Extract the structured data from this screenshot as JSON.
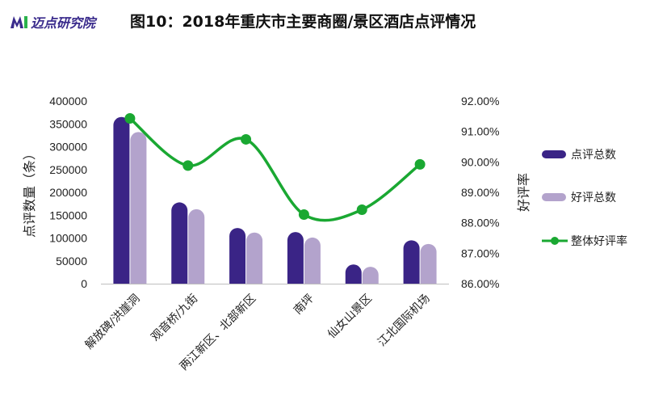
{
  "header": {
    "logo_text": "迈点研究院",
    "title": "图10：2018年重庆市主要商圈/景区酒店点评情况"
  },
  "colors": {
    "total_reviews": "#3a2486",
    "good_reviews": "#b3a3cc",
    "good_rate": "#1aa832",
    "logo": "#3a2b8c",
    "logo_accent": "#2bb24c"
  },
  "icons": {
    "logo": "maidian-logo-icon"
  },
  "chart_data": {
    "type": "bar",
    "title": "图10：2018年重庆市主要商圈/景区酒店点评情况",
    "categories": [
      "解放碑/洪崖洞",
      "观音桥/九街",
      "两江新区、北部新区",
      "南坪",
      "仙女山景区",
      "江北国际机场"
    ],
    "series": [
      {
        "name": "点评总数",
        "type": "bar",
        "axis": "left",
        "values": [
          365000,
          178000,
          122000,
          113000,
          42000,
          95000
        ]
      },
      {
        "name": "好评总数",
        "type": "bar",
        "axis": "left",
        "values": [
          332000,
          163000,
          112000,
          101000,
          37000,
          87000
        ]
      },
      {
        "name": "整体好评率",
        "type": "line",
        "axis": "right",
        "values": [
          0.9143,
          0.8988,
          0.9074,
          0.8827,
          0.8843,
          0.8992
        ]
      }
    ],
    "ylabel": "点评数量（条）",
    "ylabel_right": "好评率",
    "ylim": [
      0,
      400000
    ],
    "yticks": [
      "0",
      "50000",
      "100000",
      "150000",
      "200000",
      "250000",
      "300000",
      "350000",
      "400000"
    ],
    "ylim_right": [
      0.86,
      0.92
    ],
    "yticks_right": [
      "86.00%",
      "87.00%",
      "88.00%",
      "89.00%",
      "90.00%",
      "91.00%",
      "92.00%"
    ],
    "grid": false,
    "legend": "right"
  }
}
